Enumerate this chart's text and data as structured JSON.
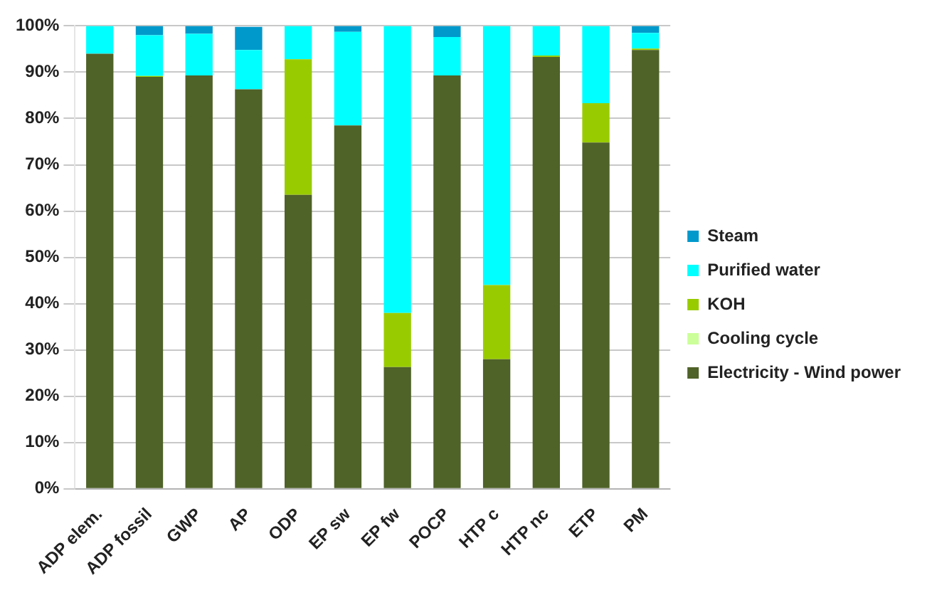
{
  "chart_data": {
    "type": "bar",
    "stacked": true,
    "categories": [
      "ADP elem.",
      "ADP fossil",
      "GWP",
      "AP",
      "ODP",
      "EP sw",
      "EP fw",
      "POCP",
      "HTP c",
      "HTP nc",
      "ETP",
      "PM"
    ],
    "series": [
      {
        "name": "Electricity - Wind power",
        "color": "#4f6228",
        "values": [
          94,
          89,
          89.3,
          86.3,
          63.5,
          78.5,
          26.3,
          89.3,
          28,
          93.3,
          74.8,
          94.8
        ]
      },
      {
        "name": "Cooling cycle",
        "color": "#ccff99",
        "values": [
          0,
          0,
          0,
          0,
          0,
          0,
          0,
          0,
          0,
          0,
          0,
          0
        ]
      },
      {
        "name": "KOH",
        "color": "#99cc00",
        "values": [
          0,
          0.2,
          0,
          null,
          29.3,
          0,
          11.7,
          0,
          16,
          0.3,
          8.5,
          0.3
        ]
      },
      {
        "name": "Purified water",
        "color": "#00ffff",
        "values": [
          6,
          8.8,
          9,
          8.5,
          7.2,
          20.2,
          62,
          8.3,
          56,
          6.4,
          16.7,
          3.4
        ]
      },
      {
        "name": "Steam",
        "color": "#0099cc",
        "values": [
          0,
          2,
          1.7,
          5,
          0,
          1.3,
          0,
          2.4,
          0,
          0,
          0,
          1.5
        ]
      }
    ],
    "ylim": [
      0,
      100
    ],
    "yticks": [
      {
        "value": 0,
        "label": "0%"
      },
      {
        "value": 10,
        "label": "10%"
      },
      {
        "value": 20,
        "label": "20%"
      },
      {
        "value": 30,
        "label": "30%"
      },
      {
        "value": 40,
        "label": "40%"
      },
      {
        "value": 50,
        "label": "50%"
      },
      {
        "value": 60,
        "label": "60%"
      },
      {
        "value": 70,
        "label": "70%"
      },
      {
        "value": 80,
        "label": "80%"
      },
      {
        "value": 90,
        "label": "90%"
      },
      {
        "value": 100,
        "label": "100%"
      }
    ],
    "grid": "y",
    "legend": "right"
  }
}
